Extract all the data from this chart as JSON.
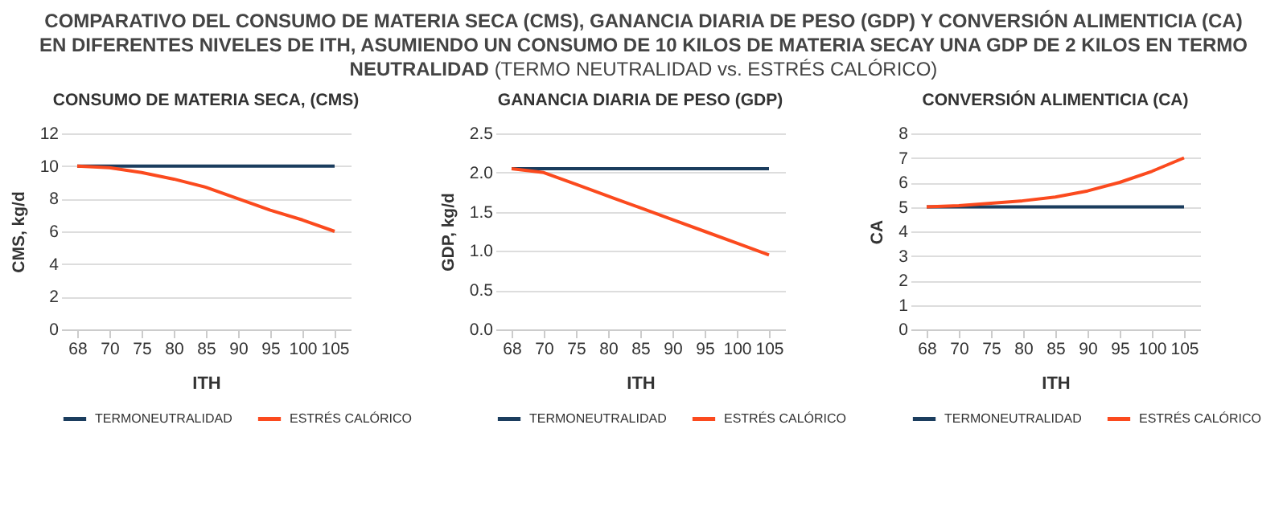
{
  "chart_data": [
    {
      "type": "other",
      "title": "COMPARATIVO DEL CONSUMO DE MATERIA SECA (CMS), GANANCIA DIARIA DE PESO (GDP) Y CONVERSIÓN ALIMENTICIA (CA) EN DIFERENTES NIVELES DE ITH, ASUMIENDO UN CONSUMO DE 10 KILOS DE MATERIA SECAY UNA GDP DE 2 KILOS EN TERMO NEUTRALIDAD",
      "subtitle": "(TERMO NEUTRALIDAD vs. ESTRÉS CALÓRICO)"
    },
    {
      "type": "line",
      "title": "CONSUMO DE MATERIA SECA, (CMS)",
      "xlabel": "ITH",
      "ylabel": "CMS, kg/d",
      "categories": [
        "68",
        "70",
        "75",
        "80",
        "85",
        "90",
        "95",
        "100",
        "105"
      ],
      "ylim": [
        0,
        12
      ],
      "yticks": [
        0,
        2,
        4,
        6,
        8,
        10,
        12
      ],
      "grid": "y",
      "legend": "bottom",
      "series": [
        {
          "name": "TERMONEUTRALIDAD",
          "color": "#1b3d5e",
          "values": [
            10,
            10,
            10,
            10,
            10,
            10,
            10,
            10,
            10
          ]
        },
        {
          "name": "ESTRÉS CALÓRICO",
          "color": "#fb4a1e",
          "values": [
            10,
            9.9,
            9.6,
            9.2,
            8.7,
            8.0,
            7.3,
            6.7,
            6.0
          ]
        }
      ]
    },
    {
      "type": "line",
      "title": "GANANCIA DIARIA DE PESO (GDP)",
      "xlabel": "ITH",
      "ylabel": "GDP, kg/d",
      "categories": [
        "68",
        "70",
        "75",
        "80",
        "85",
        "90",
        "95",
        "100",
        "105"
      ],
      "ylim": [
        0,
        2.5
      ],
      "yticks": [
        {
          "value": 0,
          "label": "0.0"
        },
        {
          "value": 0.5,
          "label": "0.5"
        },
        {
          "value": 1,
          "label": "1.0"
        },
        {
          "value": 1.5,
          "label": "1.5"
        },
        {
          "value": 2,
          "label": "2.0"
        },
        {
          "value": 2.5,
          "label": "2.5"
        }
      ],
      "grid": "y",
      "legend": "bottom",
      "series": [
        {
          "name": "TERMONEUTRALIDAD",
          "color": "#1b3d5e",
          "values": [
            2.05,
            2.05,
            2.05,
            2.05,
            2.05,
            2.05,
            2.05,
            2.05,
            2.05
          ]
        },
        {
          "name": "ESTRÉS CALÓRICO",
          "color": "#fb4a1e",
          "values": [
            2.05,
            2.0,
            1.85,
            1.7,
            1.55,
            1.4,
            1.25,
            1.1,
            0.95
          ]
        }
      ]
    },
    {
      "type": "line",
      "title": "CONVERSIÓN ALIMENTICIA (CA)",
      "xlabel": "ITH",
      "ylabel": "CA",
      "categories": [
        "68",
        "70",
        "75",
        "80",
        "85",
        "90",
        "95",
        "100",
        "105"
      ],
      "ylim": [
        0,
        8
      ],
      "yticks": [
        0,
        1,
        2,
        3,
        4,
        5,
        6,
        7,
        8
      ],
      "grid": "y",
      "legend": "bottom",
      "series": [
        {
          "name": "TERMONEUTRALIDAD",
          "color": "#1b3d5e",
          "values": [
            5,
            5,
            5,
            5,
            5,
            5,
            5,
            5,
            5
          ]
        },
        {
          "name": "ESTRÉS CALÓRICO",
          "color": "#fb4a1e",
          "values": [
            5.0,
            5.05,
            5.15,
            5.25,
            5.4,
            5.65,
            6.0,
            6.45,
            7.0
          ]
        }
      ]
    }
  ]
}
